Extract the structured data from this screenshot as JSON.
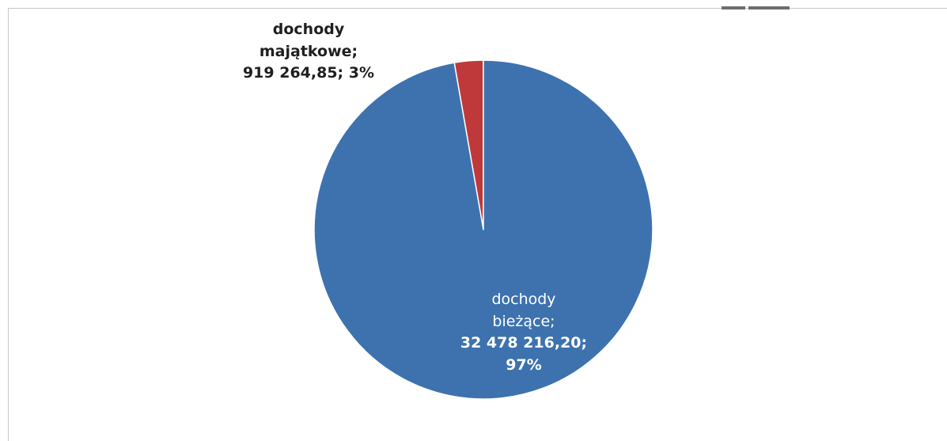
{
  "chart_data": {
    "type": "pie",
    "slices": [
      {
        "name": "dochody majątkowe",
        "label_line1": "dochody",
        "label_line2": "majątkowe;",
        "label_line3": "919 264,85; 3%",
        "value": 919264.85,
        "value_text": "919 264,85",
        "percent": 3,
        "color": "#c0393a"
      },
      {
        "name": "dochody bieżące",
        "label_line1": "dochody",
        "label_line2": "bieżące;",
        "label_line3": "32 478 216,20;",
        "label_line4": "97%",
        "value": 32478216.2,
        "value_text": "32 478 216,20",
        "percent": 97,
        "color": "#3d72ae"
      }
    ],
    "legend": "none",
    "grid": false
  }
}
